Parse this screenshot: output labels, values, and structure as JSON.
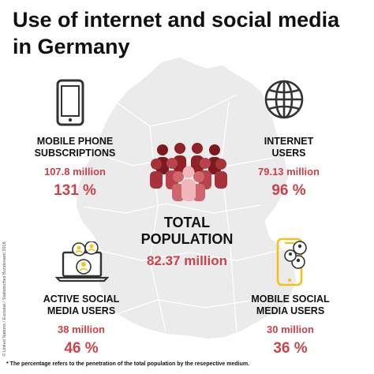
{
  "title": "Use of internet and social media in Germany",
  "stats": {
    "mobile_phone": {
      "label": "MOBILE PHONE SUBSCRIPTIONS",
      "value": "107.8 million",
      "percent": "131 %"
    },
    "internet": {
      "label": "INTERNET USERS",
      "value": "79.13 million",
      "percent": "96 %"
    },
    "total": {
      "label": "TOTAL POPULATION",
      "value": "82.37 million"
    },
    "active_social": {
      "label": "ACTIVE SOCIAL MEDIA USERS",
      "value": "38 million",
      "percent": "46 %"
    },
    "mobile_social": {
      "label": "MOBILE SOCIAL MEDIA USERS",
      "value": "30 million",
      "percent": "36 %"
    }
  },
  "footnote": "* The percentage refers to the  penetration of the total population by the resepective medium.",
  "credit": "© United Nations / Eurostat / Statistisches Bundesamt 2018",
  "icons": {
    "phone": "mobile-phone-icon",
    "globe": "globe-icon",
    "people": "people-group-icon",
    "laptop": "laptop-social-icon",
    "mobile_social": "mobile-social-icon"
  },
  "colors": {
    "accent": "#c8434a",
    "map": "#e9e9e9",
    "social_yellow": "#f2c21b"
  }
}
